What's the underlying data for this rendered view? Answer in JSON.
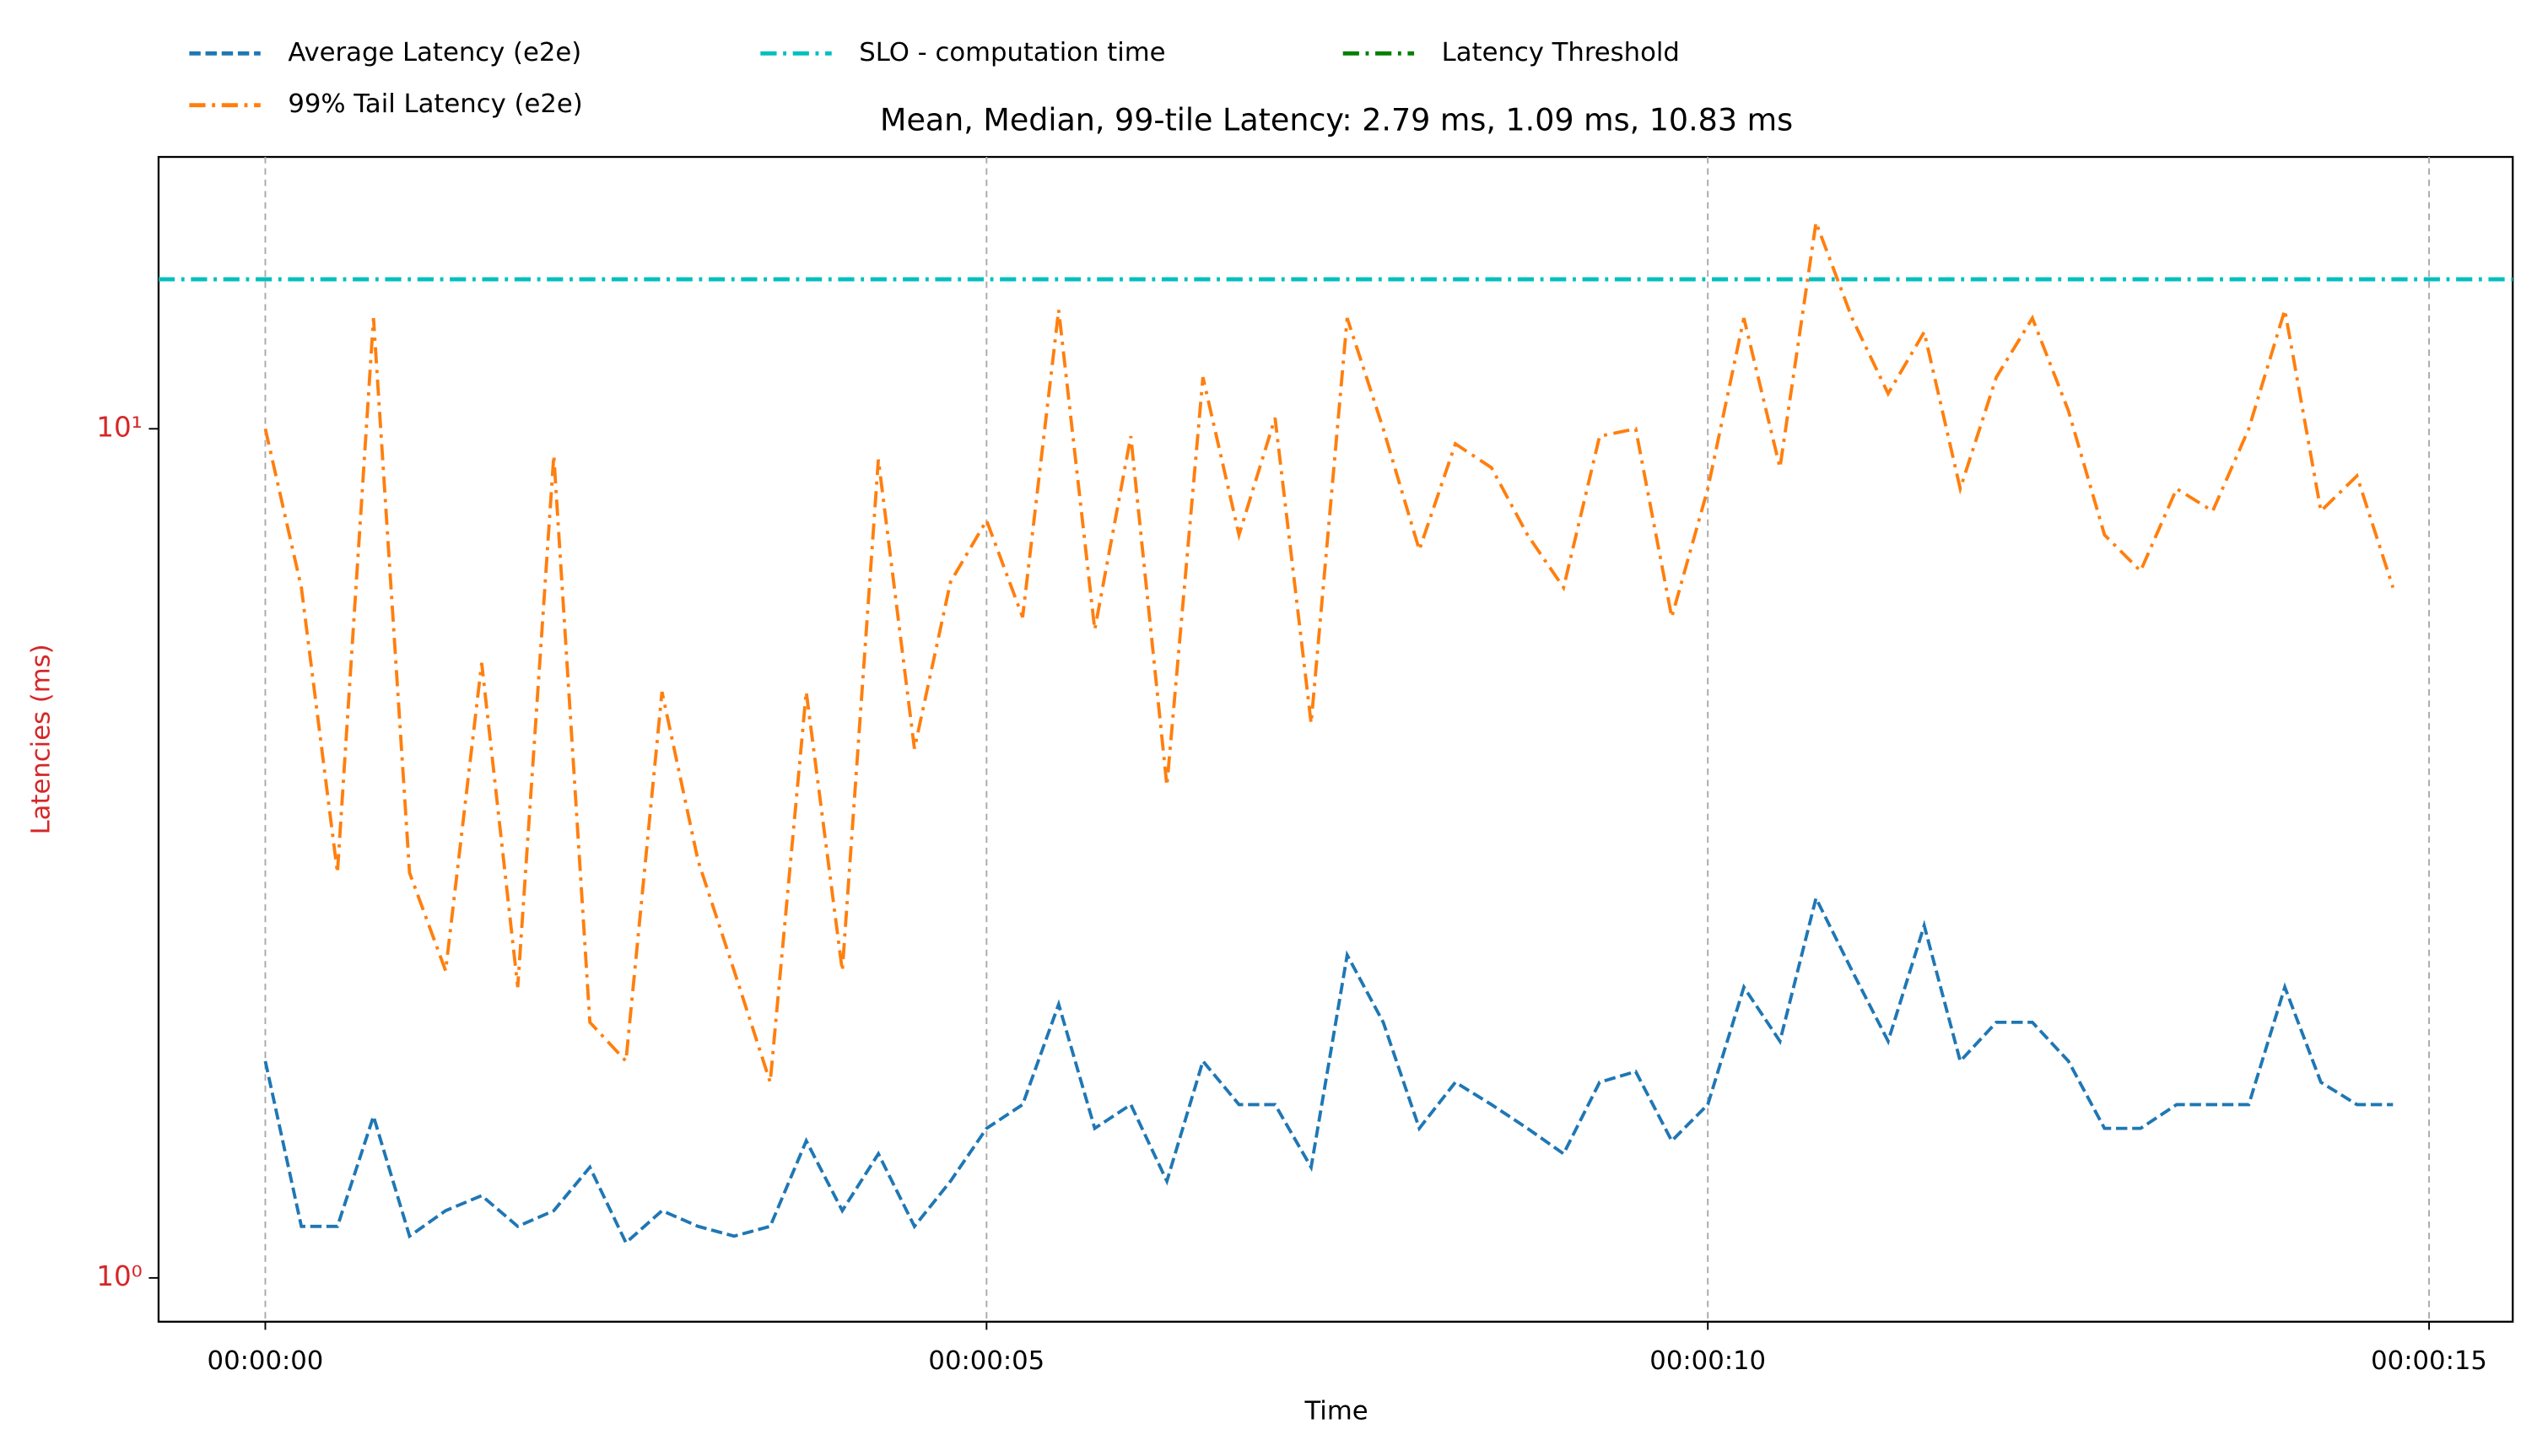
{
  "chart_data": {
    "type": "line",
    "title": "Mean, Median, 99-tile Latency: 2.79 ms, 1.09 ms, 10.83 ms",
    "x_label": "Time",
    "y_label": "Latencies (ms)",
    "y_scale": "log",
    "grid": "x",
    "x": [
      0,
      0.25,
      0.5,
      0.75,
      1,
      1.25,
      1.5,
      1.75,
      2,
      2.25,
      2.5,
      2.75,
      3,
      3.25,
      3.5,
      3.75,
      4,
      4.25,
      4.5,
      4.75,
      5,
      5.25,
      5.5,
      5.75,
      6,
      6.25,
      6.5,
      6.75,
      7,
      7.25,
      7.5,
      7.75,
      8,
      8.25,
      8.5,
      8.75,
      9,
      9.25,
      9.5,
      9.75,
      10,
      10.25,
      10.5,
      10.75,
      11,
      11.25,
      11.5,
      11.75,
      12,
      12.25,
      12.5,
      12.75,
      13,
      13.25,
      13.5,
      13.75,
      14,
      14.25,
      14.5,
      14.75
    ],
    "xlim": [
      -0.74,
      15.58
    ],
    "xticks": [
      {
        "value": 0,
        "label": "00:00:00"
      },
      {
        "value": 5,
        "label": "00:00:05"
      },
      {
        "value": 10,
        "label": "00:00:10"
      },
      {
        "value": 15,
        "label": "00:00:15"
      }
    ],
    "ylim": [
      0.888,
      20.9
    ],
    "yticks": [
      {
        "value": 1,
        "label": "10⁰"
      },
      {
        "value": 10,
        "label": "10¹"
      }
    ],
    "series": [
      {
        "name": "Average Latency (e2e)",
        "color": "#1f77b4",
        "linestyle": "dashed",
        "values": [
          1.8,
          1.15,
          1.15,
          1.55,
          1.12,
          1.2,
          1.25,
          1.15,
          1.2,
          1.35,
          1.1,
          1.2,
          1.15,
          1.12,
          1.15,
          1.45,
          1.2,
          1.4,
          1.15,
          1.3,
          1.5,
          1.6,
          2.1,
          1.5,
          1.6,
          1.3,
          1.8,
          1.6,
          1.6,
          1.35,
          2.4,
          2.0,
          1.5,
          1.7,
          1.6,
          1.5,
          1.4,
          1.7,
          1.75,
          1.45,
          1.6,
          2.2,
          1.9,
          2.8,
          2.3,
          1.9,
          2.6,
          1.8,
          2.0,
          2.0,
          1.8,
          1.5,
          1.5,
          1.6,
          1.6,
          1.6,
          2.2,
          1.7,
          1.6,
          1.6
        ]
      },
      {
        "name": "99% Tail Latency (e2e)",
        "color": "#ff7f0e",
        "linestyle": "dashdot",
        "values": [
          10,
          6.5,
          3.0,
          13.5,
          3.0,
          2.3,
          5.3,
          2.2,
          9.3,
          2.0,
          1.8,
          4.9,
          3.1,
          2.3,
          1.7,
          4.9,
          2.3,
          9.2,
          4.2,
          6.6,
          7.8,
          6.0,
          13.8,
          5.8,
          9.8,
          3.8,
          11.5,
          7.5,
          10.3,
          4.5,
          13.5,
          10,
          7.2,
          9.6,
          9.0,
          7.5,
          6.5,
          9.8,
          10,
          6.0,
          8.5,
          13.5,
          9.0,
          17.5,
          13.5,
          11,
          13,
          8.5,
          11.5,
          13.5,
          10.5,
          7.5,
          6.8,
          8.5,
          8.0,
          10,
          13.8,
          8.0,
          8.8,
          6.5
        ]
      }
    ],
    "hlines": [
      {
        "name": "SLO - computation time",
        "color": "#00bfbf",
        "linestyle": "dashdot",
        "value": 15
      },
      {
        "name": "Latency Threshold",
        "color": "#008000",
        "linestyle": "dashdot",
        "value": null
      }
    ]
  }
}
